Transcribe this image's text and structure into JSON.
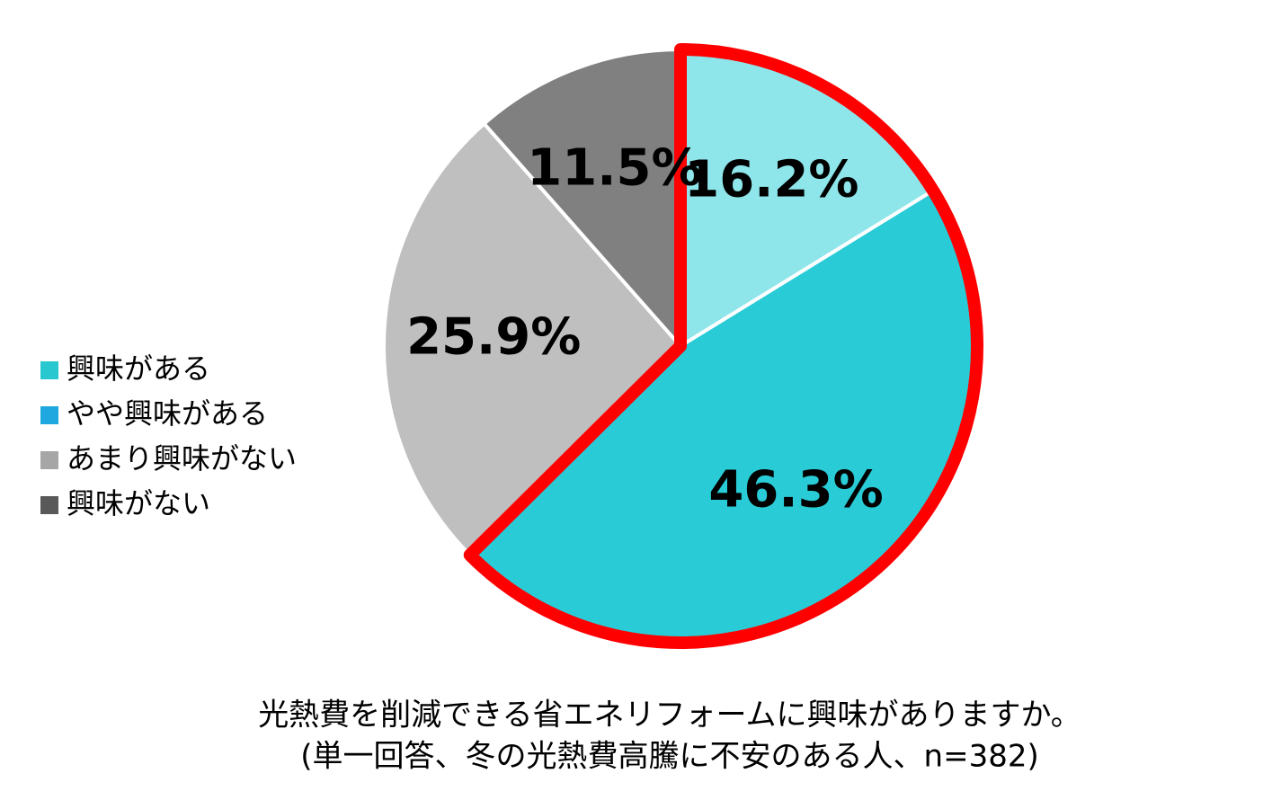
{
  "chart_data": {
    "type": "pie",
    "title": "光熱費を削減できる省エネリフォームに興味がありますか。",
    "subtitle": "(単一回答、冬の光熱費高騰に不安のある人、n=382)",
    "categories": [
      "興味がある",
      "やや興味がある",
      "あまり興味がない",
      "興味がない"
    ],
    "values": [
      16.2,
      46.3,
      25.9,
      11.5
    ],
    "value_labels": [
      "16.2%",
      "46.3%",
      "25.9%",
      "11.5%"
    ],
    "colors": [
      "#8ee6eb",
      "#29ccd6",
      "#bfbfbf",
      "#808080"
    ],
    "legend_colors": [
      "#29c8d0",
      "#1fa8e0",
      "#a6a6a6",
      "#595959"
    ],
    "highlight_color": "#ff0000"
  }
}
